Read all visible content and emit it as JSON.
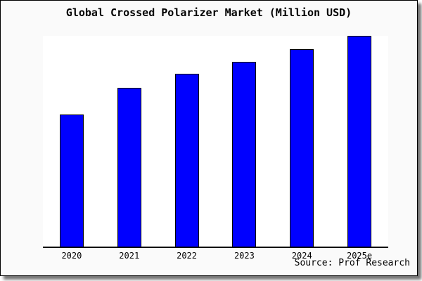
{
  "colors": {
    "bar_fill": "#0000ff",
    "bar_border": "#000000",
    "card_bg": "#fafafa",
    "plot_bg": "#ffffff",
    "axis": "#000000",
    "text": "#000000"
  },
  "chart_data": {
    "type": "bar",
    "title": "Global Crossed Polarizer Market (Million USD)",
    "categories": [
      "2020",
      "2021",
      "2022",
      "2023",
      "2024",
      "2025e"
    ],
    "values": [
      62.7,
      75.3,
      82,
      87.7,
      93.7,
      100
    ],
    "value_units": "relative scale, max year = 100 (no y-axis tick labels shown in image)",
    "xlabel": "",
    "ylabel": "",
    "ylim": [
      0,
      100
    ],
    "grid": false,
    "legend": "none",
    "y_axis_visible": false,
    "source": "Source: Prof Research"
  }
}
